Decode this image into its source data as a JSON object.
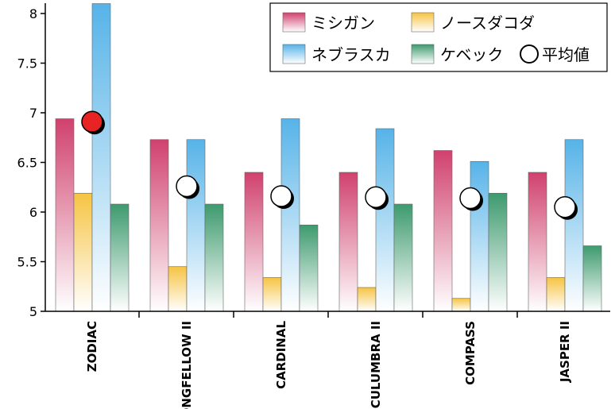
{
  "chart_data": {
    "type": "bar",
    "categories": [
      "ZODIAC",
      "LONGFELLOW II",
      "CARDINAL",
      "CULUMBRA II",
      "COMPASS",
      "JASPER II"
    ],
    "series": [
      {
        "name": "ミシガン",
        "color": "#d0416e",
        "values": [
          6.94,
          6.73,
          6.4,
          6.4,
          6.62,
          6.4
        ]
      },
      {
        "name": "ノースダコダ",
        "color": "#f6c443",
        "values": [
          6.19,
          5.45,
          5.34,
          5.24,
          5.13,
          5.34
        ]
      },
      {
        "name": "ネブラスカ",
        "color": "#56b3e8",
        "values": [
          8.1,
          6.73,
          6.94,
          6.84,
          6.51,
          6.73
        ]
      },
      {
        "name": "ケベック",
        "color": "#3d9a6e",
        "values": [
          6.08,
          6.08,
          5.87,
          6.08,
          6.19,
          5.66
        ]
      }
    ],
    "average": {
      "name": "平均値",
      "values": [
        6.91,
        6.26,
        6.16,
        6.15,
        6.14,
        6.05
      ],
      "highlight_index": 0,
      "highlight_color": "#e82323"
    },
    "yticks": [
      "5",
      "5.5",
      "6",
      "6.5",
      "7",
      "7.5",
      "8"
    ],
    "ylim": [
      5,
      8.1
    ],
    "legend_position": "top-right",
    "grid": false
  }
}
